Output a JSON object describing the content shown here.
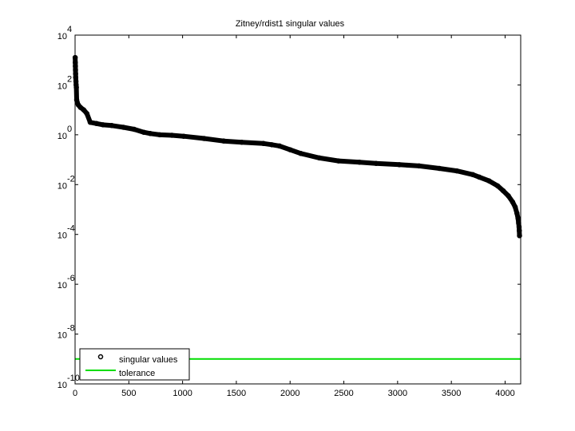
{
  "chart_data": {
    "type": "scatter",
    "title": "Zitney/rdist1 singular values",
    "xlabel": "",
    "ylabel": "",
    "xlim": [
      0,
      4145
    ],
    "ylim_log10": [
      -10,
      4
    ],
    "yscale": "log",
    "x_ticks": [
      "0",
      "500",
      "1000",
      "1500",
      "2000",
      "2500",
      "3000",
      "3500",
      "4000"
    ],
    "x_tick_values": [
      0,
      500,
      1000,
      1500,
      2000,
      2500,
      3000,
      3500,
      4000
    ],
    "y_ticks": [
      {
        "base": "10",
        "exp": "4"
      },
      {
        "base": "10",
        "exp": "2"
      },
      {
        "base": "10",
        "exp": "0"
      },
      {
        "base": "10",
        "exp": "-2"
      },
      {
        "base": "10",
        "exp": "-4"
      },
      {
        "base": "10",
        "exp": "-6"
      },
      {
        "base": "10",
        "exp": "-8"
      },
      {
        "base": "10",
        "exp": "-10"
      }
    ],
    "y_tick_exponents": [
      4,
      2,
      0,
      -2,
      -4,
      -6,
      -8,
      -10
    ],
    "series": [
      {
        "name": "singular values",
        "marker": "circle",
        "color": "#000000",
        "x": [
          1,
          2,
          3,
          4,
          5,
          6,
          8,
          10,
          12,
          15,
          20,
          30,
          50,
          80,
          110,
          141,
          200,
          260,
          342,
          450,
          550,
          639,
          700,
          788,
          900,
          1010,
          1200,
          1382,
          1550,
          1753,
          1830,
          1902,
          2000,
          2100,
          2273,
          2450,
          2645,
          2800,
          3016,
          3200,
          3388,
          3550,
          3700,
          3760,
          3850,
          3930,
          3983,
          4030,
          4070,
          4094,
          4110,
          4120,
          4126,
          4130,
          4132,
          4134
        ],
        "log10_y": [
          3.1,
          2.9,
          2.75,
          2.6,
          2.45,
          2.3,
          2.15,
          2.0,
          1.9,
          1.4,
          1.3,
          1.2,
          1.1,
          1.0,
          0.85,
          0.5,
          0.45,
          0.4,
          0.37,
          0.3,
          0.22,
          0.1,
          0.05,
          0.0,
          -0.02,
          -0.06,
          -0.15,
          -0.25,
          -0.3,
          -0.35,
          -0.4,
          -0.45,
          -0.6,
          -0.75,
          -0.93,
          -1.05,
          -1.1,
          -1.15,
          -1.2,
          -1.25,
          -1.35,
          -1.45,
          -1.6,
          -1.7,
          -1.85,
          -2.05,
          -2.25,
          -2.45,
          -2.7,
          -2.9,
          -3.15,
          -3.35,
          -3.55,
          -3.7,
          -3.85,
          -4.05
        ]
      },
      {
        "name": "tolerance",
        "type": "line",
        "color": "#00dd00",
        "log10_y": -9.0
      }
    ],
    "legend": {
      "placement": "bottom-left",
      "entries": [
        "singular values",
        "tolerance"
      ]
    },
    "grid": false
  }
}
